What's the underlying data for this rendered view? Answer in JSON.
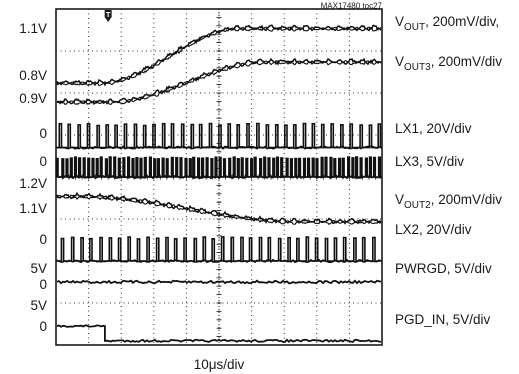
{
  "chart_data": {
    "type": "line",
    "figure_tag": "MAX17480 toc27",
    "xlabel": "10μs/div",
    "divisions_x": 10,
    "divisions_y": 8,
    "grid": true,
    "trigger_marker": "T",
    "left_labels": [
      "1.1V",
      "0.8V",
      "0.9V",
      "0",
      "0",
      "1.2V",
      "1.1V",
      "0",
      "5V",
      "0",
      "5V",
      "0"
    ],
    "traces": [
      {
        "label": {
          "base": "V",
          "sub": "OUT",
          "rest": ", 200mV/div,"
        },
        "shape": "ramp",
        "from": 0.8,
        "to": 1.1,
        "unit": "V"
      },
      {
        "label": {
          "base": "V",
          "sub": "OUT3",
          "rest": ", 200mV/div"
        },
        "shape": "ramp",
        "from": 0.9,
        "to": 1.1,
        "unit": "V"
      },
      {
        "label": {
          "base": "LX1, 20V/div"
        },
        "shape": "pulses",
        "baseline": 0
      },
      {
        "label": {
          "base": "LX3, 5V/div"
        },
        "shape": "pulses",
        "baseline": 0
      },
      {
        "label": {
          "base": "V",
          "sub": "OUT2",
          "rest": ", 200mV/div"
        },
        "shape": "ramp",
        "from": 1.2,
        "to": 1.1,
        "unit": "V"
      },
      {
        "label": {
          "base": "LX2, 20V/div"
        },
        "shape": "pulses",
        "baseline": 0
      },
      {
        "label": {
          "base": "PWRGD, 5V/div"
        },
        "shape": "level",
        "level": 5,
        "unit": "V"
      },
      {
        "label": {
          "base": "PGD_IN, 5V/div"
        },
        "shape": "step",
        "from": 5,
        "to": 0,
        "unit": "V",
        "step_at_div": 1.5
      }
    ]
  }
}
